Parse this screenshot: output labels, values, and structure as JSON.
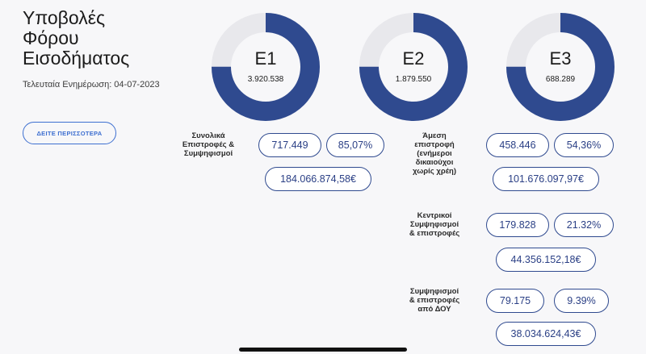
{
  "page": {
    "title": "Υποβολές\nΦόρου\nΕισοδήματος",
    "last_update": "Τελευταία Ενημέρωση: 04-07-2023",
    "more_button": "ΔΕΙΤΕ ΠΕΡΙΣΣΟΤΕΡΑ"
  },
  "colors": {
    "accent": "#2f4a8f",
    "track": "#e8e8ec",
    "button": "#3d6fd0"
  },
  "forms": [
    {
      "code": "Ε1",
      "count": "3.920.538",
      "fill": 0.75
    },
    {
      "code": "Ε2",
      "count": "1.879.550",
      "fill": 0.75
    },
    {
      "code": "Ε3",
      "count": "688.289",
      "fill": 0.75
    }
  ],
  "total": {
    "label": "Συνολικά\nΕπιστροφές &\nΣυμψηφισμοί",
    "count": "717.449",
    "percent": "85,07%",
    "amount": "184.066.874,58€"
  },
  "breakdown": [
    {
      "label": "Άμεση\nεπιστροφή\n(ενήμεροι\nδικαιούχοι\nχωρίς χρέη)",
      "count": "458.446",
      "percent": "54,36%",
      "amount": "101.676.097,97€"
    },
    {
      "label": "Κεντρικοί\nΣυμψηφισμοί\n& επιστροφές",
      "count": "179.828",
      "percent": "21.32%",
      "amount": "44.356.152,18€"
    },
    {
      "label": "Συμψηφισμοί\n& επιστροφές\nαπό ΔΟΥ",
      "count": "79.175",
      "percent": "9.39%",
      "amount": "38.034.624,43€"
    }
  ]
}
